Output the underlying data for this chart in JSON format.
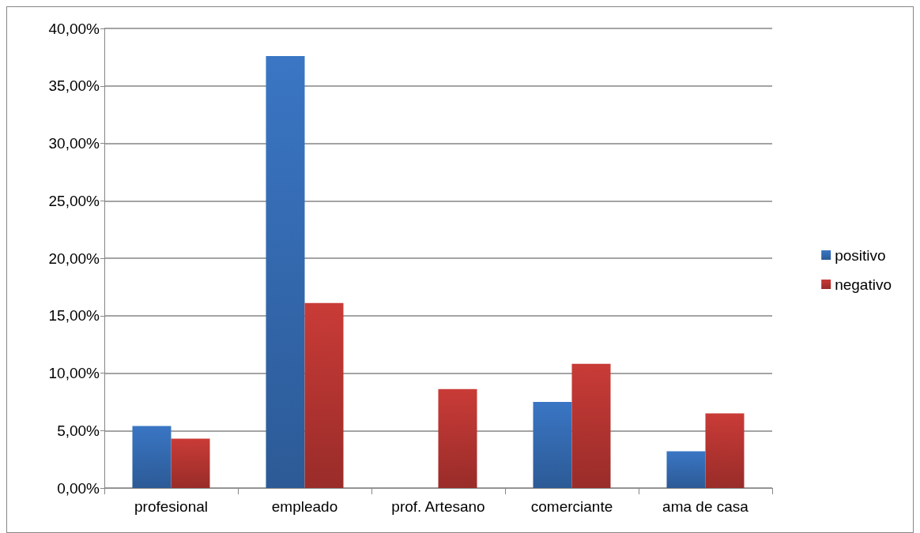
{
  "chart_data": {
    "type": "bar",
    "categories": [
      "profesional",
      "empleado",
      "prof. Artesano",
      "comerciante",
      "ama de casa"
    ],
    "series": [
      {
        "name": "positivo",
        "color": "#3a76c4",
        "values": [
          5.4,
          37.6,
          0,
          7.5,
          3.2
        ]
      },
      {
        "name": "negativo",
        "color": "#c93b37",
        "values": [
          4.3,
          16.1,
          8.6,
          10.8,
          6.5
        ]
      }
    ],
    "ylim": [
      0,
      40
    ],
    "yticks": [
      {
        "value": 0,
        "label": "0,00%"
      },
      {
        "value": 5,
        "label": "5,00%"
      },
      {
        "value": 10,
        "label": "10,00%"
      },
      {
        "value": 15,
        "label": "15,00%"
      },
      {
        "value": 20,
        "label": "20,00%"
      },
      {
        "value": 25,
        "label": "25,00%"
      },
      {
        "value": 30,
        "label": "30,00%"
      },
      {
        "value": 35,
        "label": "35,00%"
      },
      {
        "value": 40,
        "label": "40,00%"
      }
    ],
    "grid": "y",
    "legend": "right"
  }
}
